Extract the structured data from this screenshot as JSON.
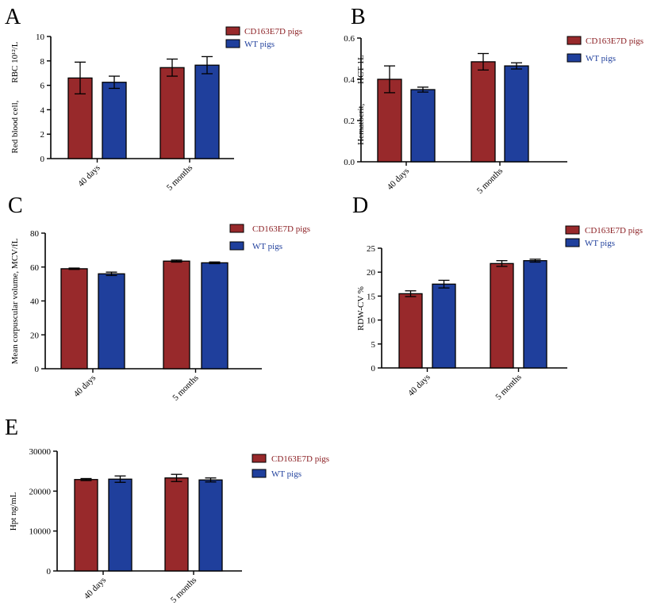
{
  "colors": {
    "cd163": "#98292b",
    "wt": "#1f3f9c",
    "axis": "#000000",
    "legend_cd163_text": "#8b1f23",
    "legend_wt_text": "#1f3f9c"
  },
  "chart_data": [
    {
      "panel": "A",
      "type": "bar",
      "categories": [
        "40 days",
        "5 months"
      ],
      "ylabel": "Red blood cell,        RBC 10¹²/L",
      "ylim": [
        0,
        10
      ],
      "yticks": [
        "0",
        "2",
        "4",
        "6",
        "8",
        "10"
      ],
      "legend": [
        "CD163E7D pigs",
        "WT pigs"
      ],
      "series": [
        {
          "name": "CD163E7D pigs",
          "values": [
            6.6,
            7.45
          ],
          "errors": [
            1.3,
            0.7
          ]
        },
        {
          "name": "WT pigs",
          "values": [
            6.25,
            7.65
          ],
          "errors": [
            0.5,
            0.7
          ]
        }
      ]
    },
    {
      "panel": "B",
      "type": "bar",
      "categories": [
        "40 days",
        "5 months"
      ],
      "ylabel": "Hematocrit,         HCT 1L",
      "ylim": [
        0,
        0.6
      ],
      "yticks": [
        "0.0",
        "0.2",
        "0.4",
        "0.6"
      ],
      "legend": [
        "CD163E7D pigs",
        "WT pigs"
      ],
      "series": [
        {
          "name": "CD163E7D pigs",
          "values": [
            0.4,
            0.485
          ],
          "errors": [
            0.065,
            0.04
          ]
        },
        {
          "name": "WT pigs",
          "values": [
            0.35,
            0.465
          ],
          "errors": [
            0.012,
            0.015
          ]
        }
      ]
    },
    {
      "panel": "C",
      "type": "bar",
      "categories": [
        "40 days",
        "5 months"
      ],
      "ylabel": "Mean corpuscular volume, MCV/fL",
      "ylim": [
        0,
        80
      ],
      "yticks": [
        "0",
        "20",
        "40",
        "60",
        "80"
      ],
      "legend": [
        "CD163E7D pigs",
        "WT pigs"
      ],
      "series": [
        {
          "name": "CD163E7D pigs",
          "values": [
            59,
            63.5
          ],
          "errors": [
            0.4,
            0.6
          ]
        },
        {
          "name": "WT pigs",
          "values": [
            56,
            62.5
          ],
          "errors": [
            1.0,
            0.5
          ]
        }
      ]
    },
    {
      "panel": "D",
      "type": "bar",
      "categories": [
        "40 days",
        "5 months"
      ],
      "ylabel": "RDW-CV %",
      "ylim": [
        0,
        25
      ],
      "yticks": [
        "0",
        "5",
        "10",
        "15",
        "20",
        "25"
      ],
      "legend": [
        "CD163E7D pigs",
        "WT pigs"
      ],
      "series": [
        {
          "name": "CD163E7D pigs",
          "values": [
            15.5,
            21.8
          ],
          "errors": [
            0.6,
            0.6
          ]
        },
        {
          "name": "WT pigs",
          "values": [
            17.5,
            22.4
          ],
          "errors": [
            0.8,
            0.3
          ]
        }
      ]
    },
    {
      "panel": "E",
      "type": "bar",
      "categories": [
        "40 days",
        "5 months"
      ],
      "ylabel": "Hpt ng/mL",
      "ylim": [
        0,
        30000
      ],
      "yticks": [
        "0",
        "10000",
        "20000",
        "30000"
      ],
      "legend": [
        "CD163E7D pigs",
        "WT pigs"
      ],
      "series": [
        {
          "name": "CD163E7D pigs",
          "values": [
            22900,
            23300
          ],
          "errors": [
            250,
            900
          ]
        },
        {
          "name": "WT pigs",
          "values": [
            23000,
            22800
          ],
          "errors": [
            800,
            500
          ]
        }
      ]
    }
  ]
}
